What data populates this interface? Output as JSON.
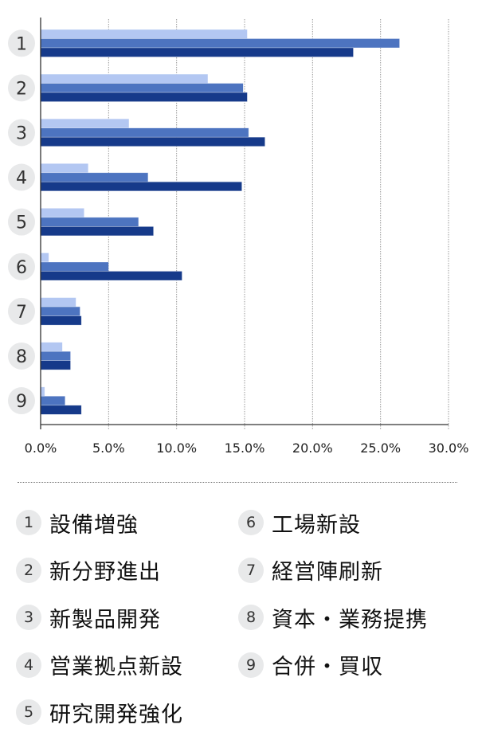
{
  "chart_data": {
    "type": "bar",
    "orientation": "horizontal",
    "title": "",
    "xlabel": "",
    "ylabel": "",
    "categories": [
      "1",
      "2",
      "3",
      "4",
      "5",
      "6",
      "7",
      "8",
      "9"
    ],
    "series": [
      {
        "name": "series-light",
        "color": "#b3c7f2",
        "values": [
          15.2,
          12.3,
          6.5,
          3.5,
          3.2,
          0.6,
          2.6,
          1.6,
          0.3
        ]
      },
      {
        "name": "series-mid",
        "color": "#4d74c0",
        "values": [
          26.4,
          14.9,
          15.3,
          7.9,
          7.2,
          5.0,
          2.9,
          2.2,
          1.8
        ]
      },
      {
        "name": "series-dark",
        "color": "#163a8a",
        "values": [
          23.0,
          15.2,
          16.5,
          14.8,
          8.3,
          10.4,
          3.0,
          2.2,
          3.0
        ]
      }
    ],
    "xlim": [
      0,
      30
    ],
    "x_ticks": [
      0,
      5,
      10,
      15,
      20,
      25,
      30
    ],
    "x_tick_labels": [
      "0.0%",
      "5.0%",
      "10.0%",
      "15.0%",
      "20.0%",
      "25.0%",
      "30.0%"
    ],
    "grid": "vertical dotted",
    "legend_position": "bottom",
    "legend": [
      {
        "num": "1",
        "label": "設備増強"
      },
      {
        "num": "2",
        "label": "新分野進出"
      },
      {
        "num": "3",
        "label": "新製品開発"
      },
      {
        "num": "4",
        "label": "営業拠点新設"
      },
      {
        "num": "5",
        "label": "研究開発強化"
      },
      {
        "num": "6",
        "label": "工場新設"
      },
      {
        "num": "7",
        "label": "経営陣刷新"
      },
      {
        "num": "8",
        "label": "資本・業務提携"
      },
      {
        "num": "9",
        "label": "合併・買収"
      }
    ]
  }
}
